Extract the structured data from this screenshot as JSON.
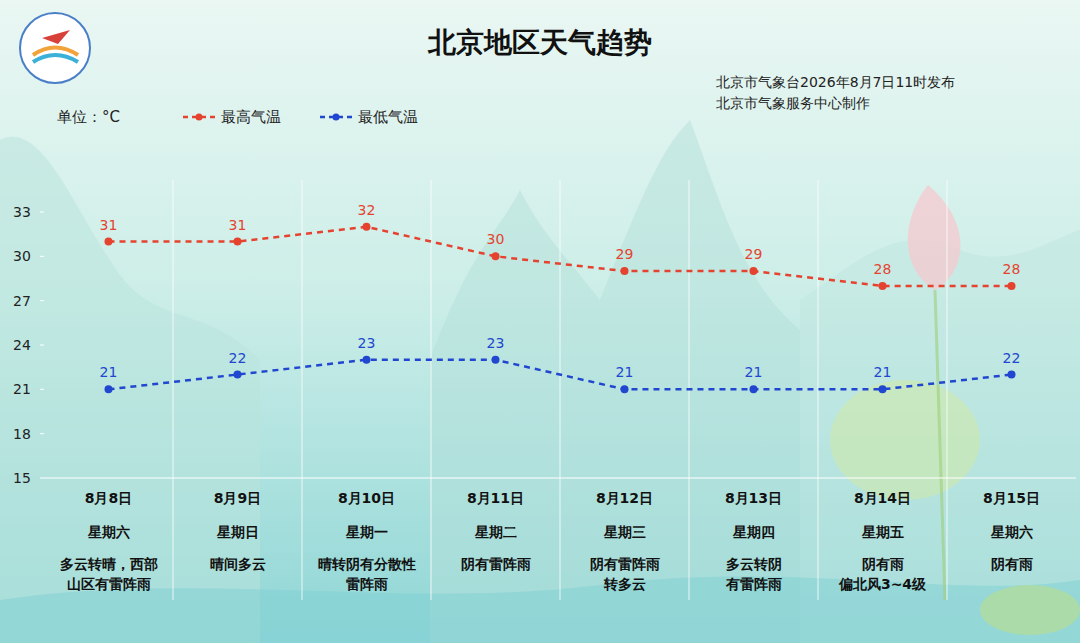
{
  "chart_data": {
    "type": "line",
    "title": "北京地区天气趋势",
    "subtitle": "北京市气象台2026年8月7日11时发布",
    "credit": "北京市气象服务中心制作",
    "y_label": "单位：°C",
    "categories": [
      "8月8日",
      "8月9日",
      "8月10日",
      "8月11日",
      "8月12日",
      "8月13日",
      "8月14日",
      "8月15日"
    ],
    "weekdays": [
      "星期六",
      "星期日",
      "星期一",
      "星期二",
      "星期三",
      "星期四",
      "星期五",
      "星期六"
    ],
    "descriptions": [
      [
        "多云转晴，西部",
        "山区有雷阵雨"
      ],
      [
        "晴间多云"
      ],
      [
        "晴转阴有分散性",
        "雷阵雨"
      ],
      [
        "阴有雷阵雨"
      ],
      [
        "阴有雷阵雨",
        "转多云"
      ],
      [
        "多云转阴",
        "有雷阵雨"
      ],
      [
        "阴有雨",
        "偏北风3~4级"
      ],
      [
        "阴有雨"
      ]
    ],
    "series": [
      {
        "name": "最高气温",
        "color": "#e5432f",
        "values": [
          31,
          31,
          32,
          30,
          29,
          29,
          28,
          28
        ],
        "marker": "circle",
        "line_style": "dashed"
      },
      {
        "name": "最低气温",
        "color": "#2146d0",
        "values": [
          21,
          22,
          23,
          23,
          21,
          21,
          21,
          22
        ],
        "marker": "circle",
        "line_style": "dashed"
      }
    ],
    "ylim": [
      15,
      33
    ],
    "yticks": [
      15,
      18,
      21,
      24,
      27,
      30,
      33
    ],
    "grid": false,
    "legend": "top-left",
    "data_labels": true
  }
}
